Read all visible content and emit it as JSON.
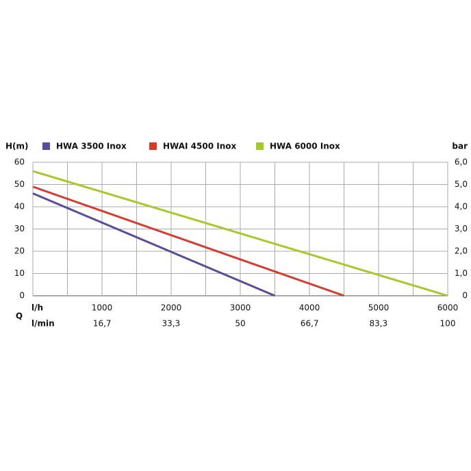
{
  "chart_data": {
    "type": "line",
    "y_label": "H(m)",
    "y2_label": "bar",
    "x_axis_symbol": "Q",
    "x_label": "l/h",
    "x2_label": "l/min",
    "series": [
      {
        "name": "HWA 3500 Inox",
        "color": "#5a4b9c",
        "x": [
          0,
          3500
        ],
        "values": [
          46,
          0
        ]
      },
      {
        "name": "HWAI 4500 Inox",
        "color": "#d9392a",
        "x": [
          0,
          4500
        ],
        "values": [
          49,
          0
        ]
      },
      {
        "name": "HWA 6000 Inox",
        "color": "#a6c92a",
        "x": [
          0,
          6000
        ],
        "values": [
          56,
          0
        ]
      }
    ],
    "xlim": [
      0,
      6000
    ],
    "xticks": [
      1000,
      2000,
      3000,
      4000,
      5000,
      6000
    ],
    "x_minor_ticks": [
      500,
      1500,
      2500,
      3500,
      4500,
      5500
    ],
    "x2lim": [
      0,
      100
    ],
    "x2ticks": [
      {
        "value": 16.7,
        "label": "16,7"
      },
      {
        "value": 33.3,
        "label": "33,3"
      },
      50,
      {
        "value": 66.7,
        "label": "66,7"
      },
      {
        "value": 83.3,
        "label": "83,3"
      },
      100
    ],
    "ylim": [
      0,
      60
    ],
    "yticks": [
      0,
      10,
      20,
      30,
      40,
      50,
      60
    ],
    "y2lim": [
      0,
      6
    ],
    "y2ticks": [
      0,
      {
        "value": 1,
        "label": "1,0"
      },
      {
        "value": 2,
        "label": "2,0"
      },
      {
        "value": 3,
        "label": "3,0"
      },
      {
        "value": 4,
        "label": "4,0"
      },
      {
        "value": 5,
        "label": "5,0"
      },
      {
        "value": 6,
        "label": "6,0"
      }
    ],
    "grid": true
  }
}
